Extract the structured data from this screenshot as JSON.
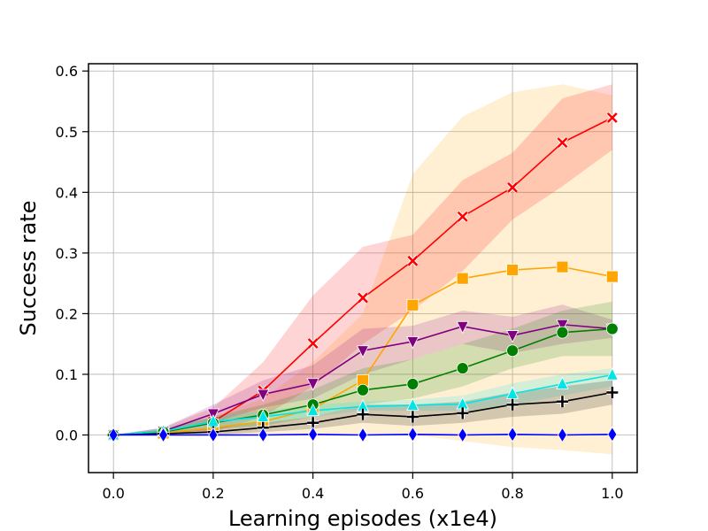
{
  "chart_data": {
    "type": "line",
    "title": "",
    "xlabel": "Learning episodes (x1e4)",
    "ylabel": "Success rate",
    "xlim": [
      -0.05,
      1.05
    ],
    "ylim": [
      -0.062,
      0.612
    ],
    "grid": true,
    "x": [
      0.0,
      0.1,
      0.2,
      0.3,
      0.4,
      0.5,
      0.6,
      0.7,
      0.8,
      0.9,
      1.0
    ],
    "x_ticks": [
      "0.0",
      "0.2",
      "0.4",
      "0.6",
      "0.8",
      "1.0"
    ],
    "x_tick_values": [
      0.0,
      0.2,
      0.4,
      0.6,
      0.8,
      1.0
    ],
    "y_ticks": [
      "0.0",
      "0.1",
      "0.2",
      "0.3",
      "0.4",
      "0.5",
      "0.6"
    ],
    "y_tick_values": [
      0.0,
      0.1,
      0.2,
      0.3,
      0.4,
      0.5,
      0.6
    ],
    "series": [
      {
        "color": "#ffa500",
        "marker": "square",
        "values": [
          0.0,
          0.003,
          0.012,
          0.022,
          0.043,
          0.09,
          0.214,
          0.258,
          0.272,
          0.277,
          0.261
        ],
        "lower": [
          0.0,
          0.0,
          0.0,
          0.0,
          0.0,
          0.0,
          0.0,
          -0.01,
          -0.02,
          -0.025,
          -0.032
        ],
        "upper": [
          0.0,
          0.008,
          0.03,
          0.06,
          0.12,
          0.2,
          0.43,
          0.525,
          0.565,
          0.578,
          0.56
        ]
      },
      {
        "color": "#ff0000",
        "marker": "x",
        "values": [
          0.0,
          0.005,
          0.022,
          0.073,
          0.151,
          0.226,
          0.287,
          0.36,
          0.408,
          0.482,
          0.523
        ],
        "lower": [
          0.0,
          0.0,
          0.005,
          0.03,
          0.08,
          0.15,
          0.205,
          0.27,
          0.355,
          0.41,
          0.47
        ],
        "upper": [
          0.0,
          0.012,
          0.045,
          0.12,
          0.23,
          0.31,
          0.33,
          0.42,
          0.465,
          0.555,
          0.578
        ]
      },
      {
        "color": "#800080",
        "marker": "triangle-down",
        "values": [
          0.0,
          0.006,
          0.035,
          0.067,
          0.085,
          0.139,
          0.154,
          0.179,
          0.164,
          0.182,
          0.175
        ],
        "lower": [
          0.0,
          0.002,
          0.02,
          0.045,
          0.06,
          0.1,
          0.125,
          0.15,
          0.135,
          0.15,
          0.16
        ],
        "upper": [
          0.0,
          0.012,
          0.05,
          0.09,
          0.115,
          0.175,
          0.18,
          0.205,
          0.195,
          0.215,
          0.19
        ]
      },
      {
        "color": "#008000",
        "marker": "circle",
        "values": [
          0.0,
          0.005,
          0.02,
          0.033,
          0.05,
          0.074,
          0.084,
          0.11,
          0.139,
          0.169,
          0.175
        ],
        "lower": [
          0.0,
          0.0,
          0.01,
          0.015,
          0.03,
          0.05,
          0.06,
          0.08,
          0.11,
          0.13,
          0.13
        ],
        "upper": [
          0.0,
          0.01,
          0.03,
          0.05,
          0.075,
          0.11,
          0.125,
          0.15,
          0.175,
          0.205,
          0.22
        ]
      },
      {
        "color": "#00e5e5",
        "marker": "triangle-up",
        "values": [
          0.0,
          0.006,
          0.022,
          0.03,
          0.04,
          0.047,
          0.049,
          0.051,
          0.068,
          0.084,
          0.099
        ],
        "lower": [
          0.0,
          0.0,
          0.01,
          0.02,
          0.03,
          0.04,
          0.04,
          0.04,
          0.05,
          0.065,
          0.08
        ],
        "upper": [
          0.0,
          0.012,
          0.03,
          0.04,
          0.05,
          0.055,
          0.058,
          0.065,
          0.085,
          0.1,
          0.11
        ]
      },
      {
        "color": "#000000",
        "marker": "plus",
        "values": [
          0.0,
          0.002,
          0.005,
          0.012,
          0.02,
          0.034,
          0.03,
          0.036,
          0.05,
          0.055,
          0.07
        ],
        "lower": [
          0.0,
          0.0,
          0.0,
          0.005,
          0.01,
          0.02,
          0.015,
          0.02,
          0.03,
          0.035,
          0.05
        ],
        "upper": [
          0.0,
          0.005,
          0.012,
          0.02,
          0.03,
          0.05,
          0.05,
          0.055,
          0.07,
          0.08,
          0.09
        ]
      },
      {
        "color": "#0000ff",
        "marker": "diamond",
        "values": [
          0.0,
          0.0,
          0.0,
          0.0,
          0.001,
          0.0,
          0.001,
          0.0,
          0.001,
          0.0,
          0.001
        ],
        "lower": [
          0.0,
          0.0,
          0.0,
          0.0,
          0.0,
          0.0,
          0.0,
          0.0,
          0.0,
          0.0,
          0.0
        ],
        "upper": [
          0.0,
          0.0,
          0.0,
          0.0,
          0.0,
          0.0,
          0.0,
          0.0,
          0.0,
          0.0,
          0.0
        ]
      }
    ],
    "band_opacity": 0.17
  }
}
